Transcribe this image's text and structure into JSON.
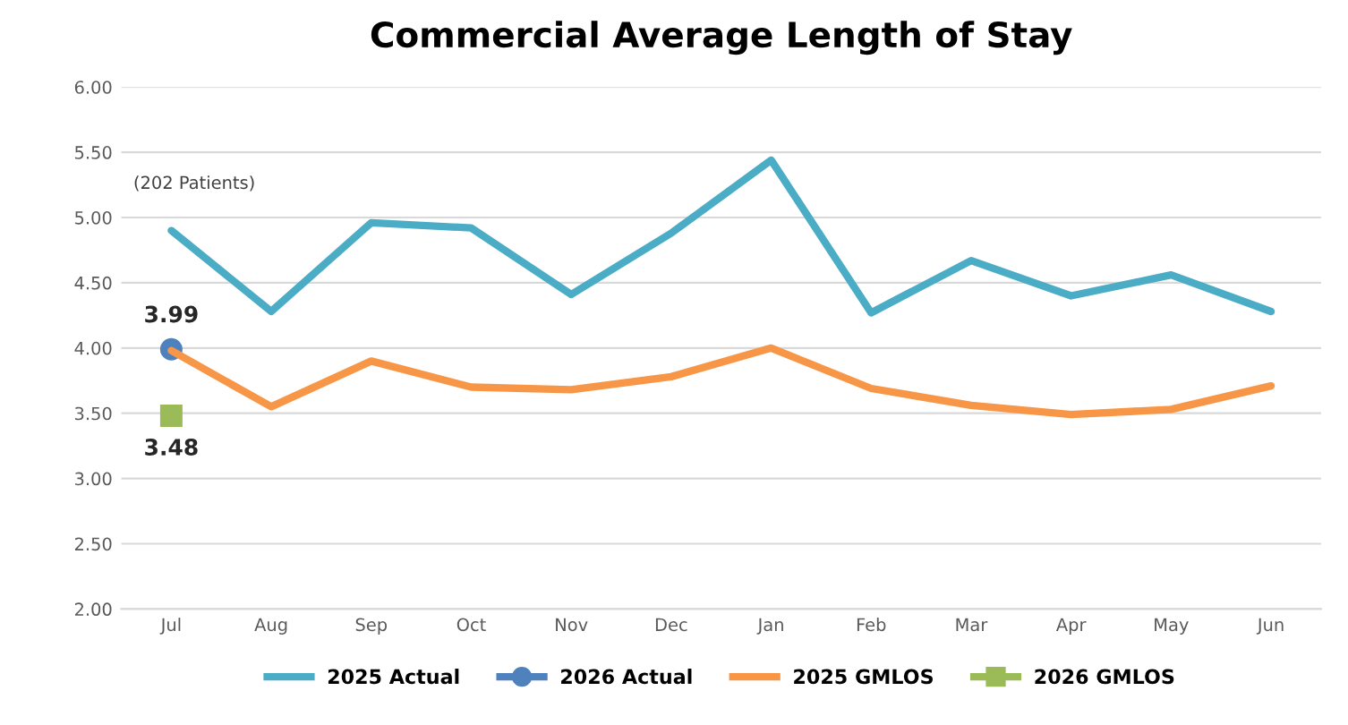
{
  "chart_data": {
    "type": "line",
    "title": "Commercial Average Length of Stay",
    "categories": [
      "Jul",
      "Aug",
      "Sep",
      "Oct",
      "Nov",
      "Dec",
      "Jan",
      "Feb",
      "Mar",
      "Apr",
      "May",
      "Jun"
    ],
    "series": [
      {
        "name": "2025 Actual",
        "color": "#4bacc6",
        "values": [
          4.9,
          4.28,
          4.96,
          4.92,
          4.41,
          4.88,
          5.44,
          4.27,
          4.67,
          4.4,
          4.56,
          4.28
        ]
      },
      {
        "name": "2026 Actual",
        "color": "#4f81bd",
        "marker": "circle",
        "values": [
          3.99,
          null,
          null,
          null,
          null,
          null,
          null,
          null,
          null,
          null,
          null,
          null
        ],
        "value_labels": [
          "3.99",
          null,
          null,
          null,
          null,
          null,
          null,
          null,
          null,
          null,
          null,
          null
        ]
      },
      {
        "name": "2025 GMLOS",
        "color": "#f79646",
        "values": [
          3.98,
          3.55,
          3.9,
          3.7,
          3.68,
          3.78,
          4.0,
          3.69,
          3.56,
          3.49,
          3.53,
          3.71
        ]
      },
      {
        "name": "2026 GMLOS",
        "color": "#9bbb59",
        "marker": "square",
        "values": [
          3.48,
          null,
          null,
          null,
          null,
          null,
          null,
          null,
          null,
          null,
          null,
          null
        ],
        "value_labels": [
          "3.48",
          null,
          null,
          null,
          null,
          null,
          null,
          null,
          null,
          null,
          null,
          null
        ]
      }
    ],
    "ylim": [
      2.0,
      6.0
    ],
    "yticks": [
      {
        "value": 2.0,
        "label": "2.00"
      },
      {
        "value": 2.5,
        "label": "2.50"
      },
      {
        "value": 3.0,
        "label": "3.00"
      },
      {
        "value": 3.5,
        "label": "3.50"
      },
      {
        "value": 4.0,
        "label": "4.00"
      },
      {
        "value": 4.5,
        "label": "4.50"
      },
      {
        "value": 5.0,
        "label": "5.00"
      },
      {
        "value": 5.5,
        "label": "5.50"
      },
      {
        "value": 6.0,
        "label": "6.00"
      }
    ],
    "annotations": [
      "(202 Patients)"
    ],
    "grid": "y",
    "legend": "bottom"
  }
}
